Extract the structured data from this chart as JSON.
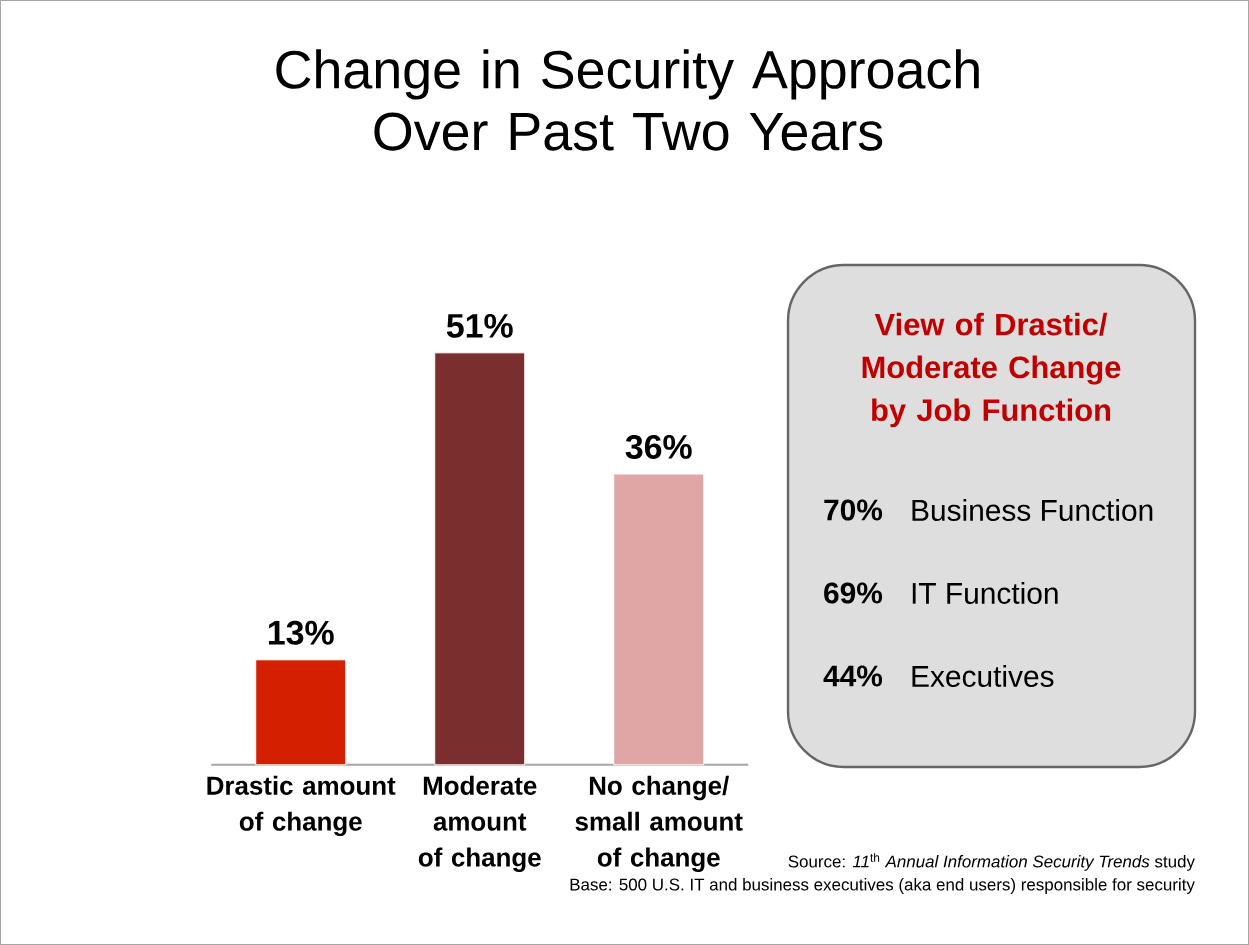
{
  "chart_data": [
    {
      "type": "bar",
      "title": "Change in Security Approach Over Past Two Years",
      "categories": [
        "Drastic amount of change",
        "Moderate amount of change",
        "No change/ small amount of change"
      ],
      "values": [
        13,
        51,
        36
      ],
      "colors": [
        "#d42000",
        "#7a2f2e",
        "#e0a6a6"
      ],
      "value_labels": [
        "13%",
        "51%",
        "36%"
      ],
      "annotations": [
        "Source: *11*$^{th}$ *Annual Information Security Trends* study",
        "Base: 500 U.S. IT and business executives (aka end users) responsible for security"
      ]
    },
    {
      "type": "other",
      "title": "View of Drastic/ Moderate Change by Job Function",
      "categories": [
        "Business Function",
        "IT Function",
        "Executives"
      ],
      "value_labels": [
        "70%",
        "69%",
        "44%"
      ]
    }
  ]
}
